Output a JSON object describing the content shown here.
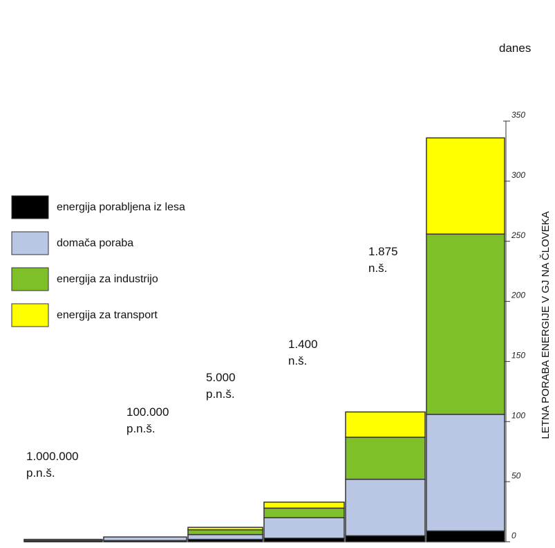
{
  "chart_data": {
    "type": "stacked-bar",
    "categories": [
      "1.000.000 p.n.š.",
      "100.000 p.n.š.",
      "5.000 p.n.š.",
      "1.400 n.š.",
      "1.875 n.š.",
      "danes"
    ],
    "series": [
      {
        "name": "energija porabljena iz lesa",
        "color": "#000000",
        "values": [
          1,
          1,
          2,
          3,
          5,
          9
        ]
      },
      {
        "name": "domača poraba",
        "color": "#b9c6e4",
        "values": [
          1,
          3,
          4,
          17,
          47,
          97
        ]
      },
      {
        "name": "energija za industrijo",
        "color": "#7fbf2a",
        "values": [
          0,
          0,
          4,
          8,
          35,
          150
        ]
      },
      {
        "name": "energija za transport",
        "color": "#ffff00",
        "values": [
          0,
          0,
          2,
          5,
          21,
          80
        ]
      }
    ],
    "y_label": "LETNA PORABA ENERGIJE V GJ NA ČLOVEKA",
    "ylim": [
      0,
      350
    ],
    "yticks": [
      0,
      50,
      100,
      150,
      200,
      250,
      300,
      350
    ]
  }
}
